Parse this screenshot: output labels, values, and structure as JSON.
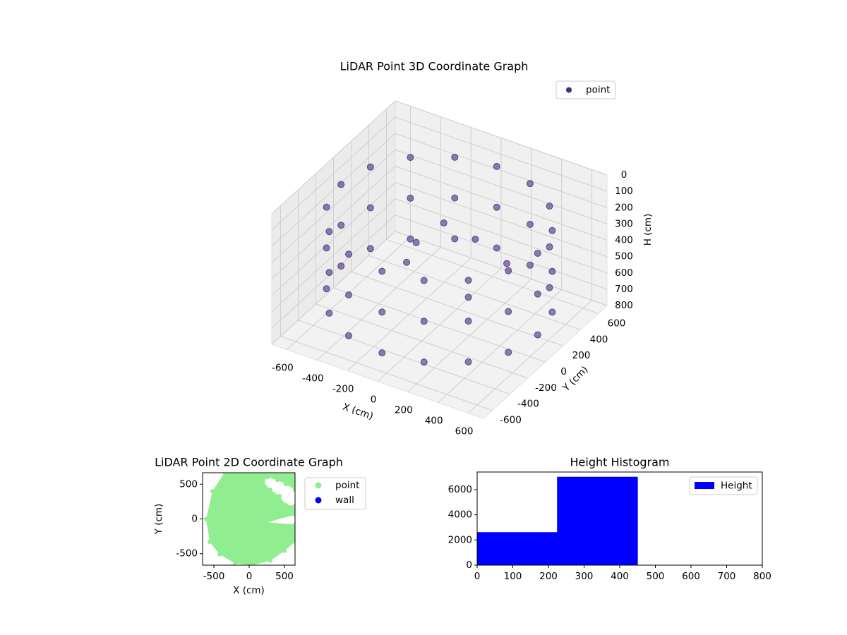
{
  "chart_data": [
    {
      "type": "scatter3d",
      "title": "LiDAR Point 3D Coordinate Graph",
      "xlabel": "X (cm)",
      "ylabel": "Y (cm)",
      "zlabel": "H (cm)",
      "xlim": [
        -700,
        700
      ],
      "ylim": [
        -700,
        700
      ],
      "zlim": [
        800,
        0
      ],
      "xticks": [
        -600,
        -400,
        -200,
        0,
        200,
        400,
        600
      ],
      "yticks": [
        -600,
        -400,
        -200,
        0,
        200,
        400,
        600
      ],
      "zticks": [
        0,
        100,
        200,
        300,
        400,
        500,
        600,
        700,
        800
      ],
      "grid": true,
      "legend": "upper right",
      "series": [
        {
          "name": "point",
          "color": "#472c7a",
          "x": [
            650,
            601,
            460,
            249,
            0,
            -249,
            -460,
            -601,
            -650,
            -601,
            -460,
            -249,
            0,
            249,
            460,
            601,
            650,
            601,
            460,
            249,
            0,
            -249,
            -460,
            -601,
            -650,
            -601,
            -460,
            -249,
            0,
            249,
            460,
            601,
            650,
            601,
            460,
            249,
            0,
            -249,
            -460,
            -601,
            -650,
            -601,
            -460,
            -249,
            0,
            249,
            460,
            601,
            0,
            150,
            -200,
            250,
            -100,
            300
          ],
          "y": [
            0,
            249,
            460,
            601,
            650,
            601,
            460,
            249,
            0,
            -249,
            -460,
            -601,
            -650,
            -601,
            -460,
            -249,
            0,
            249,
            460,
            601,
            650,
            601,
            460,
            249,
            0,
            -249,
            -460,
            -601,
            -650,
            -601,
            -460,
            -249,
            0,
            249,
            460,
            601,
            650,
            601,
            460,
            249,
            0,
            -249,
            -460,
            -601,
            -650,
            -601,
            -460,
            -249,
            50,
            150,
            80,
            -100,
            -200,
            250
          ],
          "z": [
            150,
            150,
            150,
            150,
            150,
            150,
            150,
            150,
            150,
            150,
            150,
            150,
            150,
            150,
            150,
            150,
            400,
            400,
            400,
            400,
            400,
            400,
            400,
            400,
            400,
            400,
            400,
            400,
            400,
            400,
            400,
            400,
            650,
            650,
            650,
            650,
            650,
            650,
            650,
            650,
            650,
            650,
            650,
            650,
            650,
            650,
            650,
            650,
            200,
            300,
            400,
            500,
            350,
            450
          ]
        }
      ]
    },
    {
      "type": "scatter",
      "title": "LiDAR Point 2D Coordinate Graph",
      "xlabel": "X (cm)",
      "ylabel": "Y (cm)",
      "xlim": [
        -660,
        650
      ],
      "ylim": [
        -665,
        665
      ],
      "xticks": [
        -500,
        0,
        500
      ],
      "yticks": [
        -500,
        0,
        500
      ],
      "legend": "outside right",
      "series": [
        {
          "name": "point",
          "color": "lightgreen",
          "x": [
            -610,
            -560,
            -420,
            -200,
            50,
            300,
            500,
            650,
            650,
            250,
            650,
            650,
            520,
            430,
            300,
            200,
            260,
            400,
            520,
            650,
            650,
            520,
            -350,
            -520
          ],
          "y": [
            0,
            -330,
            -510,
            -640,
            -665,
            -600,
            -460,
            -330,
            -80,
            -50,
            60,
            190,
            200,
            330,
            420,
            530,
            600,
            560,
            500,
            420,
            665,
            665,
            665,
            400
          ]
        },
        {
          "name": "wall",
          "color": "blue",
          "x": [],
          "y": []
        }
      ]
    },
    {
      "type": "histogram",
      "title": "Height Histogram",
      "name": "Height",
      "color": "blue",
      "bins": [
        0,
        225,
        450,
        675,
        900
      ],
      "counts": [
        2600,
        7000,
        0,
        0
      ],
      "xlim": [
        0,
        800
      ],
      "ylim": [
        0,
        7400
      ],
      "xticks": [
        0,
        100,
        200,
        300,
        400,
        500,
        600,
        700,
        800
      ],
      "yticks": [
        0,
        2000,
        4000,
        6000
      ],
      "legend": "upper right"
    }
  ]
}
